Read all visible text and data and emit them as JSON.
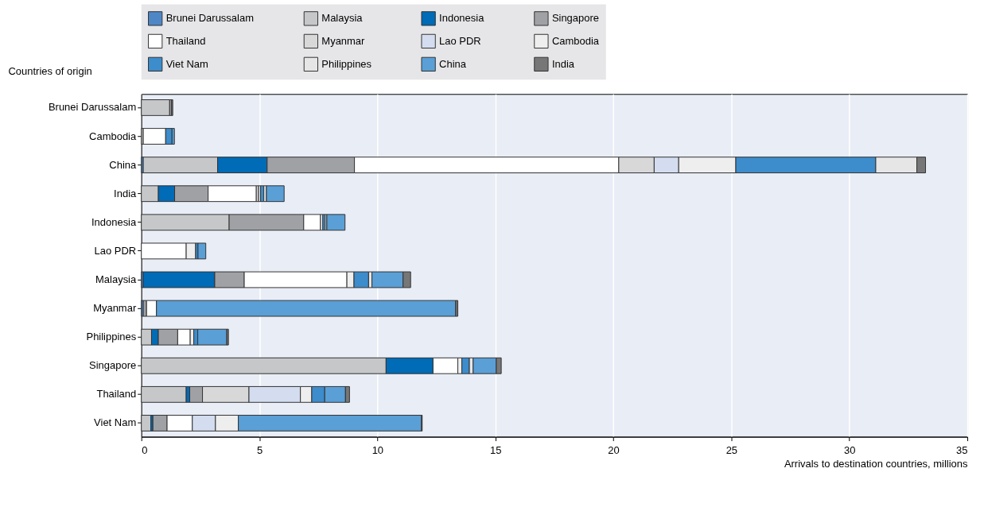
{
  "chart_data": {
    "type": "bar",
    "orientation": "horizontal",
    "stacked": true,
    "ylabel": "Countries of origin",
    "xlabel": "Arrivals to destination countries, millions",
    "categories": [
      "Brunei Darussalam",
      "Cambodia",
      "China",
      "India",
      "Indonesia",
      "Lao PDR",
      "Malaysia",
      "Myanmar",
      "Philippines",
      "Singapore",
      "Thailand",
      "Viet Nam"
    ],
    "series": [
      {
        "name": "Brunei Darussalam",
        "color": "#4f86c6",
        "values": [
          null,
          null,
          0.08,
          null,
          null,
          null,
          0.08,
          0.08,
          null,
          null,
          null,
          null
        ]
      },
      {
        "name": "Malaysia",
        "color": "#c6c7c9",
        "values": [
          1.2,
          0.08,
          3.15,
          0.72,
          3.72,
          null,
          null,
          null,
          0.43,
          10.37,
          1.9,
          0.4
        ]
      },
      {
        "name": "Indonesia",
        "color": "#006bb6",
        "values": [
          null,
          null,
          2.1,
          0.69,
          null,
          null,
          3.03,
          null,
          0.29,
          1.99,
          0.15,
          0.09
        ]
      },
      {
        "name": "Singapore",
        "color": "#a0a1a5",
        "values": [
          0.08,
          null,
          3.7,
          1.42,
          3.16,
          null,
          1.25,
          0.14,
          0.82,
          null,
          0.54,
          0.6
        ]
      },
      {
        "name": "Thailand",
        "color": "#ffffff",
        "values": [
          null,
          0.95,
          11.2,
          2.04,
          0.71,
          1.9,
          4.35,
          0.42,
          0.53,
          1.05,
          null,
          1.07
        ]
      },
      {
        "name": "Myanmar",
        "color": "#d8d8d8",
        "values": [
          null,
          null,
          1.5,
          0.1,
          null,
          null,
          null,
          null,
          null,
          null,
          1.97,
          null
        ]
      },
      {
        "name": "Lao PDR",
        "color": "#d3ddef",
        "values": [
          null,
          null,
          1.04,
          null,
          null,
          null,
          null,
          null,
          null,
          null,
          2.18,
          0.98
        ]
      },
      {
        "name": "Cambodia",
        "color": "#eeeeee",
        "values": [
          null,
          null,
          2.42,
          0.08,
          0.1,
          0.4,
          0.3,
          null,
          0.15,
          0.17,
          0.48,
          0.97
        ]
      },
      {
        "name": "Viet Nam",
        "color": "#3d8ccb",
        "values": [
          null,
          0.27,
          5.93,
          0.14,
          0.1,
          0.1,
          0.62,
          null,
          0.17,
          0.32,
          0.55,
          null
        ]
      },
      {
        "name": "Philippines",
        "color": "#e6e6e6",
        "values": [
          null,
          null,
          1.74,
          0.11,
          0.07,
          null,
          0.14,
          null,
          null,
          0.16,
          null,
          null
        ]
      },
      {
        "name": "China",
        "color": "#5a9fd6",
        "values": [
          null,
          0.1,
          null,
          0.75,
          0.77,
          0.33,
          1.32,
          12.68,
          1.23,
          0.98,
          0.88,
          7.76
        ]
      },
      {
        "name": "India",
        "color": "#777777",
        "values": [
          0.05,
          null,
          0.37,
          null,
          null,
          null,
          0.32,
          0.09,
          0.07,
          0.21,
          0.17,
          0.03
        ]
      }
    ],
    "xlim": [
      0,
      35
    ],
    "xticks": [
      0,
      5,
      10,
      15,
      20,
      25,
      30,
      35
    ],
    "grid": "x",
    "legend": "top"
  }
}
